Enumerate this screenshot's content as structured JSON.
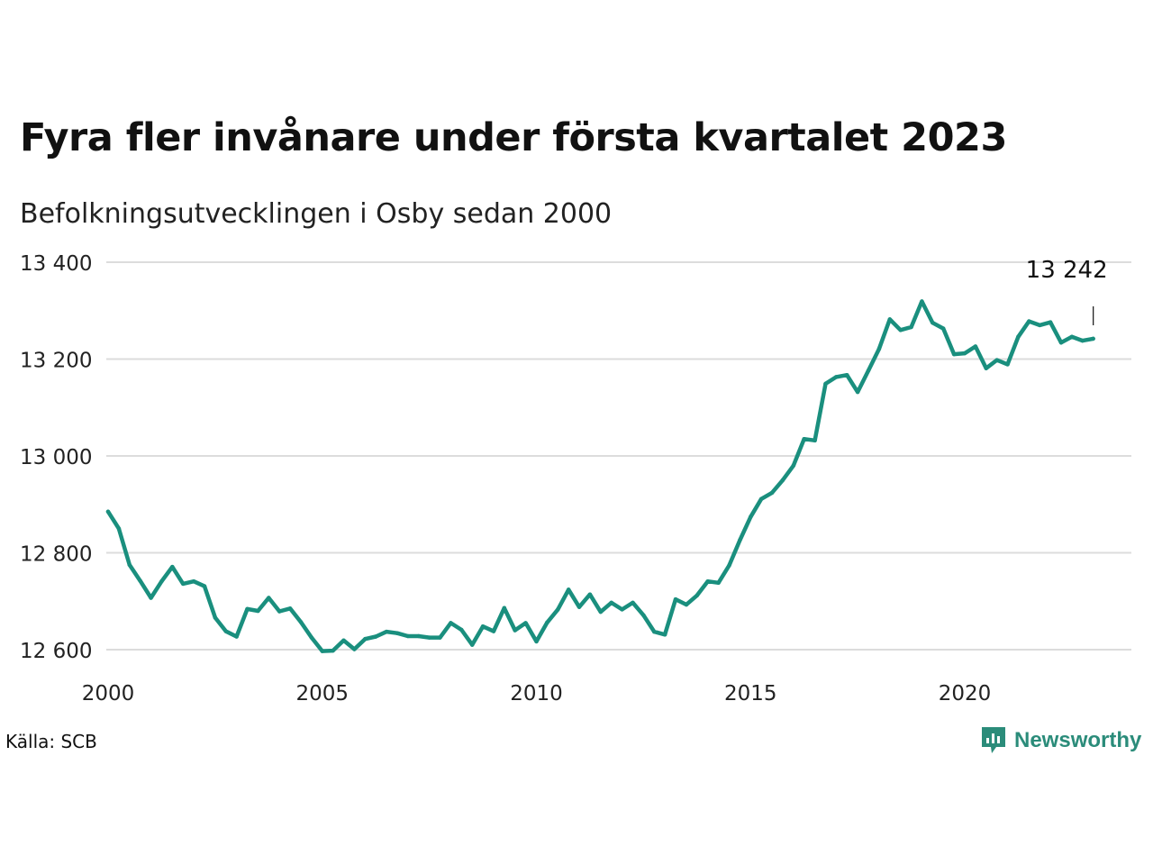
{
  "title": "Fyra fler invånare under första kvartalet 2023",
  "subtitle": "Befolkningsutvecklingen i Osby sedan 2000",
  "source": "Källa: SCB",
  "logo": {
    "text": "Newsworthy",
    "icon": "bar-chart-speech-bubble-icon"
  },
  "colors": {
    "line": "#1a8f7e",
    "grid": "#dcdcdc",
    "brand": "#2b8c7a"
  },
  "chart_data": {
    "type": "line",
    "title": "Fyra fler invånare under första kvartalet 2023",
    "subtitle": "Befolkningsutvecklingen i Osby sedan 2000",
    "xlabel": "",
    "ylabel": "",
    "x_ticks": [
      2000,
      2005,
      2010,
      2015,
      2020
    ],
    "y_ticks": [
      12600,
      12800,
      13000,
      13200,
      13400
    ],
    "y_tick_labels": [
      "12 600",
      "12 800",
      "13 000",
      "13 200",
      "13 400"
    ],
    "xlim": [
      2000,
      2024.2
    ],
    "ylim": [
      12600,
      13400
    ],
    "grid": true,
    "annotation": {
      "text": "13 242",
      "x": 2023.0,
      "y": 13242
    },
    "series": [
      {
        "x": [
          2000.0,
          2000.25,
          2000.5,
          2000.75,
          2001.0,
          2001.25,
          2001.5,
          2001.75,
          2002.0,
          2002.25,
          2002.5,
          2002.75,
          2003.0,
          2003.25,
          2003.5,
          2003.75,
          2004.0,
          2004.25,
          2004.5,
          2004.75,
          2005.0,
          2005.25,
          2005.5,
          2005.75,
          2006.0,
          2006.25,
          2006.5,
          2006.75,
          2007.0,
          2007.25,
          2007.5,
          2007.75,
          2008.0,
          2008.25,
          2008.5,
          2008.75,
          2009.0,
          2009.25,
          2009.5,
          2009.75,
          2010.0,
          2010.25,
          2010.5,
          2010.75,
          2011.0,
          2011.25,
          2011.5,
          2011.75,
          2012.0,
          2012.25,
          2012.5,
          2012.75,
          2013.0,
          2013.25,
          2013.5,
          2013.75,
          2014.0,
          2014.25,
          2014.5,
          2014.75,
          2015.0,
          2015.25,
          2015.5,
          2015.75,
          2016.0,
          2016.25,
          2016.5,
          2016.75,
          2017.0,
          2017.25,
          2017.5,
          2017.75,
          2018.0,
          2018.25,
          2018.5,
          2018.75,
          2019.0,
          2019.25,
          2019.5,
          2019.75,
          2020.0,
          2020.25,
          2020.5,
          2020.75,
          2021.0,
          2021.25,
          2021.5,
          2021.75,
          2022.0,
          2022.25,
          2022.5,
          2022.75,
          2023.0
        ],
        "values": [
          12885,
          12850,
          12775,
          12742,
          12707,
          12741,
          12771,
          12736,
          12741,
          12731,
          12666,
          12638,
          12627,
          12684,
          12680,
          12707,
          12679,
          12685,
          12657,
          12625,
          12597,
          12598,
          12619,
          12601,
          12622,
          12627,
          12637,
          12634,
          12628,
          12628,
          12625,
          12625,
          12655,
          12641,
          12610,
          12648,
          12638,
          12686,
          12640,
          12655,
          12617,
          12656,
          12683,
          12724,
          12688,
          12714,
          12678,
          12697,
          12683,
          12697,
          12671,
          12637,
          12631,
          12704,
          12693,
          12712,
          12741,
          12738,
          12774,
          12826,
          12874,
          12911,
          12924,
          12950,
          12980,
          13035,
          13032,
          13149,
          13163,
          13167,
          13132,
          13176,
          13221,
          13282,
          13260,
          13266,
          13319,
          13275,
          13263,
          13210,
          13212,
          13226,
          13181,
          13198,
          13189,
          13246,
          13278,
          13270,
          13276,
          13234,
          13246,
          13238,
          13242
        ]
      }
    ]
  }
}
